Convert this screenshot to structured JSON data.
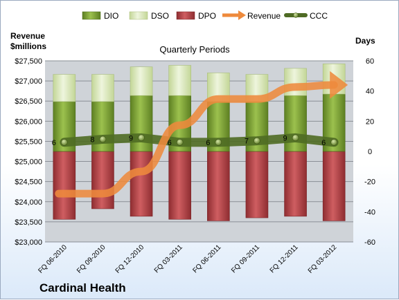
{
  "company": "Cardinal Health",
  "legend": [
    {
      "key": "dio",
      "label": "DIO"
    },
    {
      "key": "dso",
      "label": "DSO"
    },
    {
      "key": "dpo",
      "label": "DPO"
    },
    {
      "key": "revenue",
      "label": "Revenue"
    },
    {
      "key": "ccc",
      "label": "CCC"
    }
  ],
  "colors": {
    "dio": "#7fa63a",
    "dso": "#d8e6b4",
    "dpo": "#b8474a",
    "revenue": "#ee8a3c",
    "ccc": "#4f6b24",
    "plot_bg": "#cfd3d8",
    "frame_bottom": "#dbe9f9"
  },
  "chart_data": {
    "type": "bar",
    "stacked": true,
    "title": "Quarterly Periods",
    "y_left_label": "Revenue $millions",
    "y_right_label": "Days",
    "categories": [
      "FQ 06-2010",
      "FQ 09-2010",
      "FQ 12-2010",
      "FQ 03-2011",
      "FQ 06-2011",
      "FQ 09-2011",
      "FQ 12-2011",
      "FQ 03-2012"
    ],
    "ylim_left": [
      23000,
      27500
    ],
    "y_left_ticks": [
      "$23,000",
      "$23,500",
      "$24,000",
      "$24,500",
      "$25,000",
      "$25,500",
      "$26,000",
      "$26,500",
      "$27,000",
      "$27,500"
    ],
    "ylim_right": [
      -60,
      60
    ],
    "y_right_ticks": [
      "-60",
      "-40",
      "-20",
      "0",
      "20",
      "40",
      "60"
    ],
    "series": [
      {
        "name": "DIO",
        "axis": "right",
        "values": [
          33,
          33,
          37,
          37,
          33,
          33,
          37,
          38
        ]
      },
      {
        "name": "DSO",
        "axis": "right",
        "values": [
          18,
          18,
          19,
          20,
          19,
          18,
          18,
          20
        ]
      },
      {
        "name": "DPO",
        "axis": "right",
        "values": [
          -45,
          -38,
          -43,
          -45,
          -46,
          -44,
          -43,
          -46
        ]
      },
      {
        "name": "Revenue",
        "axis": "left",
        "values": [
          24200,
          24200,
          24750,
          25900,
          26550,
          26550,
          26850,
          26900
        ]
      },
      {
        "name": "CCC",
        "axis": "right",
        "values": [
          6,
          8,
          9,
          6,
          6,
          7,
          9,
          6
        ]
      }
    ],
    "ccc_labels": [
      "6",
      "8",
      "9",
      "6",
      "6",
      "7",
      "9",
      "6"
    ]
  }
}
